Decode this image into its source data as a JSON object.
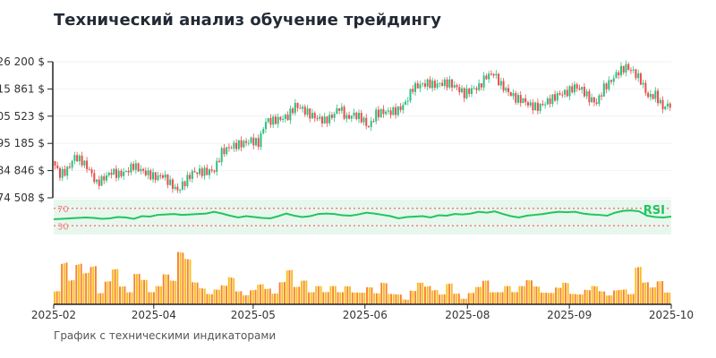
{
  "title": "Технический анализ обучение трейдингу",
  "subtitle": "График с техническими индикаторами",
  "chart_data": {
    "type": "candlestick",
    "title": "Технический анализ обучение трейдингу",
    "y_ticks": [
      "74 508 $",
      "84 846 $",
      "95 185 $",
      "105 523 $",
      "115 861 $",
      "126 200 $"
    ],
    "y_tick_values": [
      74508,
      84846,
      95185,
      105523,
      115861,
      126200
    ],
    "ylim": [
      74508,
      126200
    ],
    "x_ticks": [
      "2025-02",
      "2025-04",
      "2025-05",
      "2025-06",
      "2025-08",
      "2025-09",
      "2025-10"
    ],
    "close": [
      88448,
      83348,
      85048,
      90148,
      88400,
      85048,
      79948,
      82000,
      84368,
      83348,
      84368,
      86748,
      85048,
      83500,
      82328,
      83008,
      79948,
      77248,
      80500,
      84028,
      84368,
      84368,
      85048,
      91848,
      93548,
      94568,
      95248,
      96268,
      95248,
      103748,
      103748,
      104500,
      105448,
      109528,
      108168,
      106128,
      104768,
      103748,
      105448,
      108848,
      104768,
      106128,
      104768,
      101368,
      106468,
      107148,
      107148,
      107828,
      110548,
      116328,
      117348,
      118028,
      117348,
      118028,
      118028,
      116328,
      113948,
      115648,
      116668,
      120748,
      121768,
      117348,
      114628,
      112248,
      111568,
      109528,
      108848,
      110548,
      112248,
      113948,
      114628,
      116668,
      115648,
      112248,
      110548,
      116328,
      119048,
      122448,
      124148,
      122448,
      119048,
      112928,
      113600,
      108848,
      110000
    ],
    "rsi": {
      "label": "RSI",
      "levels": [
        70,
        30
      ],
      "values": [
        45,
        46,
        47,
        48,
        49,
        48,
        46,
        47,
        50,
        49,
        46,
        52,
        51,
        55,
        56,
        57,
        55,
        56,
        57,
        58,
        62,
        58,
        53,
        49,
        52,
        50,
        48,
        47,
        52,
        58,
        53,
        50,
        52,
        57,
        58,
        57,
        54,
        53,
        56,
        60,
        58,
        55,
        52,
        47,
        50,
        51,
        52,
        49,
        54,
        53,
        57,
        56,
        58,
        62,
        60,
        63,
        57,
        52,
        49,
        53,
        55,
        57,
        60,
        62,
        61,
        62,
        58,
        56,
        55,
        53,
        60,
        64,
        65,
        63,
        53,
        50,
        49,
        51
      ]
    },
    "volume": [
      3,
      9,
      5,
      8,
      6,
      7,
      2,
      4,
      6,
      3,
      2,
      5,
      4,
      2,
      3,
      5,
      4,
      9,
      8,
      4,
      3,
      2,
      3,
      4,
      6,
      3,
      2,
      3,
      4,
      3,
      2,
      4,
      6,
      3,
      4,
      2,
      3,
      2,
      3,
      2,
      3,
      2,
      2,
      3,
      2,
      4,
      2,
      2,
      1,
      3,
      5,
      4,
      3,
      2,
      4,
      2,
      1,
      2,
      3,
      4,
      2,
      2,
      3,
      2,
      3,
      4,
      3,
      2,
      2,
      3,
      4,
      2,
      2,
      3,
      4,
      3,
      2,
      3,
      3,
      2,
      7,
      4,
      3,
      4,
      2
    ],
    "colors": {
      "up": "#26c281",
      "down": "#ef4a4a",
      "rsi": "#22c55e",
      "rsi_band": "#e8f7ee",
      "level": "#f08080",
      "vol1": "#f5b800",
      "vol2": "#f97316"
    }
  }
}
